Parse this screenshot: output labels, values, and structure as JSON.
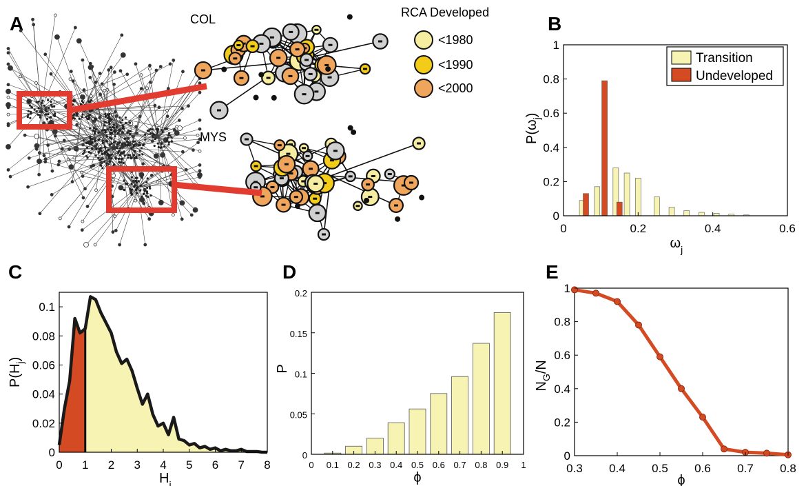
{
  "panel_labels": {
    "a": "A",
    "b": "B",
    "c": "C",
    "d": "D",
    "e": "E"
  },
  "network": {
    "col_label": "COL",
    "mys_label": "MYS",
    "legend_title": "RCA Developed",
    "legend_items": [
      {
        "label": "<1980",
        "color": "#f6eda0"
      },
      {
        "label": "<1990",
        "color": "#f3cc1a"
      },
      {
        "label": "<2000",
        "color": "#f0a55c"
      }
    ],
    "colors": {
      "highlight_box": "#e23b30",
      "grey_node": "#d0d0d0"
    }
  },
  "chart_data": [
    {
      "id": "B",
      "type": "bar",
      "xlabel": "ω_j",
      "ylabel": "P(ω_j)",
      "xlim": [
        0,
        0.6
      ],
      "ylim": [
        0,
        1
      ],
      "xticks": [
        "0",
        "0.2",
        "0.4",
        "0.6"
      ],
      "yticks": [
        "0",
        "0.2",
        "0.4",
        "0.6",
        "0.8",
        "1"
      ],
      "legend_position": "top-right",
      "series": [
        {
          "name": "Transition",
          "color": "#f7f3b3",
          "points": [
            [
              0.05,
              0.09
            ],
            [
              0.09,
              0.17
            ],
            [
              0.14,
              0.28
            ],
            [
              0.17,
              0.25
            ],
            [
              0.2,
              0.22
            ],
            [
              0.25,
              0.11
            ],
            [
              0.29,
              0.05
            ],
            [
              0.33,
              0.03
            ],
            [
              0.37,
              0.02
            ],
            [
              0.41,
              0.015
            ],
            [
              0.45,
              0.01
            ],
            [
              0.49,
              0.005
            ]
          ]
        },
        {
          "name": "Undeveloped",
          "color": "#d44a23",
          "points": [
            [
              0.06,
              0.13
            ],
            [
              0.11,
              0.79
            ],
            [
              0.15,
              0.08
            ]
          ]
        }
      ]
    },
    {
      "id": "C",
      "type": "area",
      "xlabel": "H_i",
      "ylabel": "P(H_j)",
      "xlim": [
        0,
        8
      ],
      "ylim": [
        0,
        0.11
      ],
      "xticks": [
        "0",
        "1",
        "2",
        "3",
        "4",
        "5",
        "6",
        "7",
        "8"
      ],
      "yticks": [
        "0",
        "0.02",
        "0.04",
        "0.06",
        "0.08",
        "0.1"
      ],
      "threshold_x": 1,
      "fill_left": "#d44a23",
      "fill_right": "#f7f3b3",
      "x": [
        0,
        0.2,
        0.4,
        0.6,
        0.8,
        1.0,
        1.2,
        1.4,
        1.6,
        1.8,
        2.0,
        2.2,
        2.4,
        2.6,
        2.8,
        3.0,
        3.2,
        3.4,
        3.6,
        3.8,
        4.0,
        4.2,
        4.4,
        4.6,
        4.8,
        5.0,
        5.2,
        5.4,
        5.6,
        5.8,
        6.0,
        6.2,
        6.4,
        6.6,
        6.8,
        7.0,
        7.2,
        7.4,
        7.6,
        7.8,
        8.0
      ],
      "y": [
        0.005,
        0.03,
        0.049,
        0.092,
        0.082,
        0.085,
        0.107,
        0.105,
        0.096,
        0.089,
        0.082,
        0.069,
        0.061,
        0.064,
        0.056,
        0.044,
        0.033,
        0.04,
        0.026,
        0.018,
        0.02,
        0.012,
        0.024,
        0.009,
        0.008,
        0.005,
        0.006,
        0.003,
        0.004,
        0.002,
        0.003,
        0.001,
        0.002,
        0.001,
        0.001,
        0.002,
        0.0005,
        0.0005,
        0.0005,
        0,
        0
      ]
    },
    {
      "id": "D",
      "type": "bar",
      "xlabel": "ϕ",
      "ylabel": "P",
      "xlim": [
        0,
        1
      ],
      "ylim": [
        0,
        0.2
      ],
      "xticks": [
        "0",
        "0.1",
        "0.2",
        "0.3",
        "0.4",
        "0.5",
        "0.6",
        "0.7",
        "0.8",
        "0.9",
        "1"
      ],
      "yticks": [
        "0",
        "0.05",
        "0.1",
        "0.15",
        "0.2"
      ],
      "color": "#f7f3b3",
      "x": [
        0.1,
        0.2,
        0.3,
        0.4,
        0.5,
        0.6,
        0.7,
        0.8,
        0.9
      ],
      "values": [
        0.0015,
        0.01,
        0.02,
        0.039,
        0.056,
        0.075,
        0.096,
        0.137,
        0.175
      ]
    },
    {
      "id": "E",
      "type": "line",
      "xlabel": "ϕ",
      "ylabel": "N_G/N",
      "xlim": [
        0.3,
        0.8
      ],
      "ylim": [
        0,
        1
      ],
      "xticks": [
        "0.3",
        "0.4",
        "0.5",
        "0.6",
        "0.7",
        "0.8"
      ],
      "yticks": [
        "0",
        "0.2",
        "0.4",
        "0.6",
        "0.8",
        "1"
      ],
      "color": "#d44a23",
      "x": [
        0.3,
        0.35,
        0.4,
        0.45,
        0.5,
        0.55,
        0.6,
        0.65,
        0.7,
        0.75,
        0.8
      ],
      "y": [
        0.99,
        0.97,
        0.92,
        0.78,
        0.59,
        0.4,
        0.23,
        0.04,
        0.02,
        0.015,
        0.005
      ]
    }
  ]
}
